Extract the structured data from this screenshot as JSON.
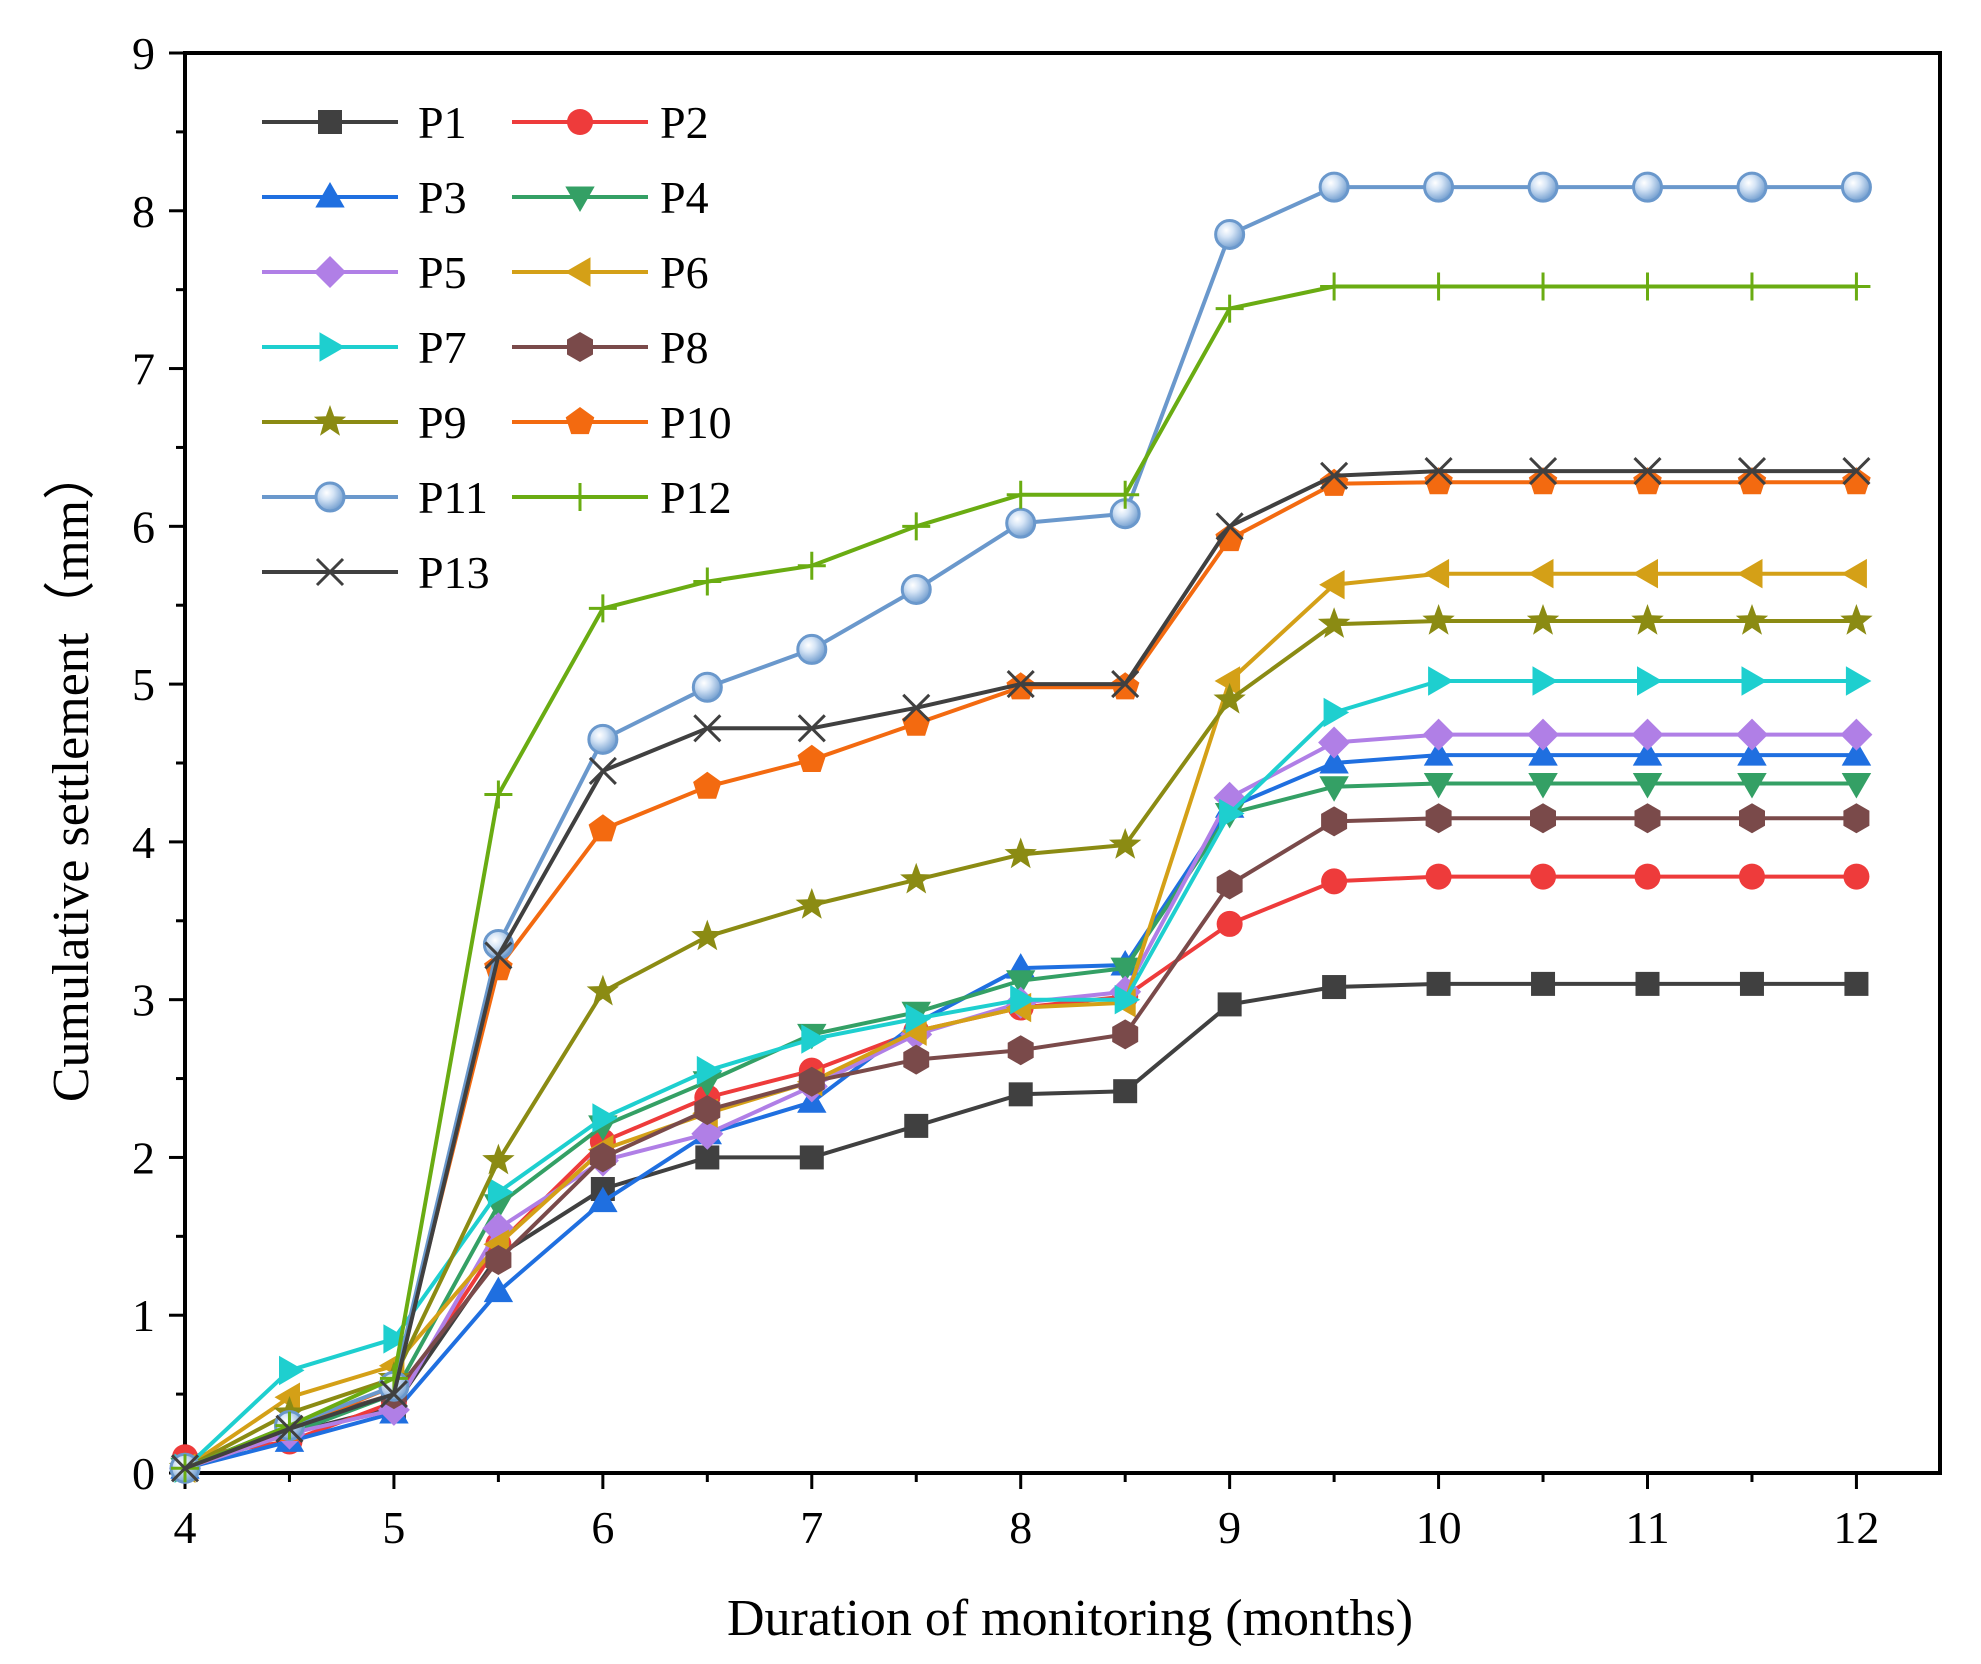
{
  "chart_data": {
    "type": "line",
    "title": "",
    "xlabel": "Duration of monitoring (months)",
    "ylabel": "Cumulative settlement（mm）",
    "xlim": [
      4,
      12.4
    ],
    "ylim": [
      0,
      9
    ],
    "xticks": [
      4,
      5,
      6,
      7,
      8,
      9,
      10,
      11,
      12
    ],
    "yticks": [
      0,
      1,
      2,
      3,
      4,
      5,
      6,
      7,
      8,
      9
    ],
    "grid": false,
    "legend_position": "top-left",
    "x": [
      4,
      4.5,
      5,
      5.5,
      6,
      6.5,
      7,
      7.5,
      8,
      8.5,
      9,
      9.5,
      10,
      10.5,
      11,
      11.5,
      12
    ],
    "series": [
      {
        "name": "P1",
        "color": "#404040",
        "marker": "square",
        "values": [
          0.05,
          0.25,
          0.42,
          1.38,
          1.8,
          2.0,
          2.0,
          2.2,
          2.4,
          2.42,
          2.97,
          3.08,
          3.1,
          3.1,
          3.1,
          3.1,
          3.1
        ]
      },
      {
        "name": "P2",
        "color": "#ee3b3b",
        "marker": "circle",
        "values": [
          0.1,
          0.2,
          0.45,
          1.45,
          2.1,
          2.38,
          2.55,
          2.8,
          2.95,
          3.02,
          3.48,
          3.75,
          3.78,
          3.78,
          3.78,
          3.78,
          3.78
        ]
      },
      {
        "name": "P3",
        "color": "#1f6fe0",
        "marker": "triangle-up",
        "values": [
          0.03,
          0.2,
          0.38,
          1.15,
          1.72,
          2.15,
          2.35,
          2.85,
          3.2,
          3.22,
          4.22,
          4.5,
          4.55,
          4.55,
          4.55,
          4.55,
          4.55
        ]
      },
      {
        "name": "P4",
        "color": "#34a065",
        "marker": "triangle-down",
        "values": [
          0.03,
          0.25,
          0.5,
          1.7,
          2.2,
          2.48,
          2.78,
          2.92,
          3.12,
          3.2,
          4.18,
          4.35,
          4.37,
          4.37,
          4.37,
          4.37,
          4.37
        ]
      },
      {
        "name": "P5",
        "color": "#b07fe6",
        "marker": "diamond",
        "values": [
          0.03,
          0.25,
          0.4,
          1.55,
          1.98,
          2.15,
          2.45,
          2.78,
          2.98,
          3.05,
          4.28,
          4.63,
          4.68,
          4.68,
          4.68,
          4.68,
          4.68
        ]
      },
      {
        "name": "P6",
        "color": "#d4a017",
        "marker": "triangle-left",
        "values": [
          0.03,
          0.48,
          0.68,
          1.45,
          2.05,
          2.28,
          2.48,
          2.8,
          2.95,
          2.98,
          5.02,
          5.63,
          5.7,
          5.7,
          5.7,
          5.7,
          5.7
        ]
      },
      {
        "name": "P7",
        "color": "#1ecfcf",
        "marker": "triangle-right",
        "values": [
          0.03,
          0.65,
          0.85,
          1.78,
          2.25,
          2.55,
          2.75,
          2.88,
          3.0,
          3.0,
          4.18,
          4.82,
          5.02,
          5.02,
          5.02,
          5.02,
          5.02
        ]
      },
      {
        "name": "P8",
        "color": "#7a4a4a",
        "marker": "hexagon",
        "values": [
          0.03,
          0.3,
          0.5,
          1.35,
          2.0,
          2.3,
          2.48,
          2.62,
          2.68,
          2.78,
          3.73,
          4.13,
          4.15,
          4.15,
          4.15,
          4.15,
          4.15
        ]
      },
      {
        "name": "P9",
        "color": "#8b8b13",
        "marker": "star",
        "values": [
          0.03,
          0.38,
          0.6,
          1.98,
          3.05,
          3.4,
          3.6,
          3.76,
          3.92,
          3.98,
          4.9,
          5.38,
          5.4,
          5.4,
          5.4,
          5.4,
          5.4
        ]
      },
      {
        "name": "P10",
        "color": "#f36a10",
        "marker": "pentagon",
        "values": [
          0.03,
          0.28,
          0.55,
          3.2,
          4.08,
          4.35,
          4.52,
          4.75,
          4.98,
          4.98,
          5.92,
          6.27,
          6.28,
          6.28,
          6.28,
          6.28,
          6.28
        ]
      },
      {
        "name": "P11",
        "color": "#6a98cc",
        "marker": "sphere",
        "values": [
          0.03,
          0.3,
          0.55,
          3.35,
          4.65,
          4.98,
          5.22,
          5.6,
          6.02,
          6.08,
          7.85,
          8.15,
          8.15,
          8.15,
          8.15,
          8.15,
          8.15
        ]
      },
      {
        "name": "P12",
        "color": "#6aac12",
        "marker": "plus",
        "values": [
          0.03,
          0.3,
          0.6,
          4.3,
          5.48,
          5.65,
          5.75,
          6.0,
          6.2,
          6.2,
          7.38,
          7.52,
          7.52,
          7.52,
          7.52,
          7.52,
          7.52
        ]
      },
      {
        "name": "P13",
        "color": "#404040",
        "marker": "x",
        "values": [
          0.03,
          0.28,
          0.5,
          3.28,
          4.45,
          4.72,
          4.72,
          4.85,
          5.0,
          5.0,
          6.0,
          6.32,
          6.35,
          6.35,
          6.35,
          6.35,
          6.35
        ]
      }
    ]
  }
}
